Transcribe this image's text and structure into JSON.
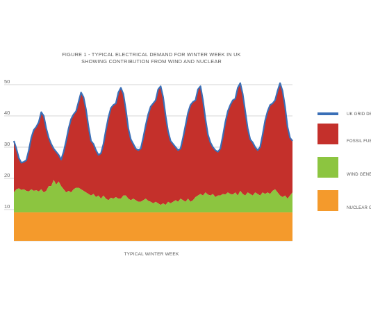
{
  "chart_data": {
    "type": "area",
    "title_line1": "FIGURE 1 - TYPICAL ELECTRICAL DEMAND FOR WINTER WEEK IN UK",
    "title_line2": "SHOWING CONTRIBUTION FROM WIND AND NUCLEAR",
    "xlabel": "TYPICAL WINTER WEEK",
    "ylabel": "",
    "ylim": [
      0,
      52
    ],
    "yticks": [
      10,
      20,
      30,
      40,
      50
    ],
    "grid": true,
    "legend_position": "right",
    "series": [
      {
        "name": "UK GRID DE",
        "color": "#3a6fb7",
        "style": "line",
        "values": [
          32,
          29.5,
          26.5,
          25,
          25.3,
          25.8,
          29,
          33,
          35.5,
          36.5,
          38,
          41.2,
          40,
          36,
          33,
          31,
          29.5,
          28.5,
          27.5,
          26,
          28.5,
          32,
          36,
          39,
          40.5,
          41.5,
          44.5,
          47.5,
          46,
          42,
          36.5,
          32,
          31,
          29,
          27.5,
          28,
          31,
          35.5,
          39.5,
          42.5,
          43.5,
          44,
          47.5,
          49,
          47,
          42,
          36,
          32.5,
          31,
          29.5,
          29,
          29.5,
          33,
          37,
          40.5,
          43,
          44,
          45,
          48.5,
          49.5,
          46,
          40,
          35,
          32,
          31,
          30,
          29,
          29.5,
          33,
          37,
          41,
          43.5,
          44.5,
          45,
          48.5,
          49.5,
          45,
          39,
          34,
          31.5,
          30,
          29,
          28.5,
          29.5,
          33.5,
          38,
          41.5,
          43.5,
          45,
          45.5,
          49,
          50.5,
          47,
          41.5,
          36,
          32.5,
          31.5,
          30,
          29,
          30,
          34,
          38.5,
          41.5,
          43.5,
          44,
          45,
          48,
          50.5,
          48,
          43,
          36.5,
          33,
          32
        ]
      },
      {
        "name": "FOSSIL FUE",
        "color": "#c4302b",
        "style": "area"
      },
      {
        "name": "WIND GENE",
        "color": "#8cc540",
        "style": "area",
        "values": [
          15.5,
          16.5,
          16.8,
          16.3,
          16.5,
          16,
          15.8,
          16.5,
          16,
          16.2,
          15.8,
          16.5,
          15.5,
          16,
          17.5,
          17.5,
          19.5,
          18,
          19,
          17.5,
          16.5,
          15.5,
          16,
          15.5,
          16.5,
          17,
          17,
          16.5,
          16,
          15.5,
          15,
          14.5,
          15,
          14,
          14.5,
          13.5,
          14.5,
          13.5,
          13,
          13.8,
          13.5,
          14,
          13.5,
          13.5,
          14.5,
          14.5,
          13.5,
          13,
          13.5,
          13,
          12.5,
          12.5,
          13,
          13.5,
          12.8,
          12.5,
          12,
          12.5,
          12,
          11.5,
          12,
          11.5,
          12.5,
          12,
          12.5,
          13,
          12.5,
          13.5,
          13,
          12.5,
          13.5,
          12.5,
          13,
          14,
          14.5,
          15,
          14.5,
          15.5,
          14.8,
          14.5,
          15,
          14,
          14.5,
          14.5,
          15,
          14.8,
          15.5,
          15,
          14.8,
          15.5,
          14.5,
          16,
          15,
          14.5,
          15.5,
          15,
          14.5,
          15.5,
          15,
          14.5,
          15.5,
          15,
          15.5,
          15,
          16,
          16.5,
          15.5,
          14.5,
          14,
          14.5,
          13.5,
          14.5,
          15.5
        ]
      },
      {
        "name": "NUCLEAR G",
        "color": "#f49a2c",
        "style": "area",
        "values": [
          9.1
        ]
      }
    ]
  }
}
